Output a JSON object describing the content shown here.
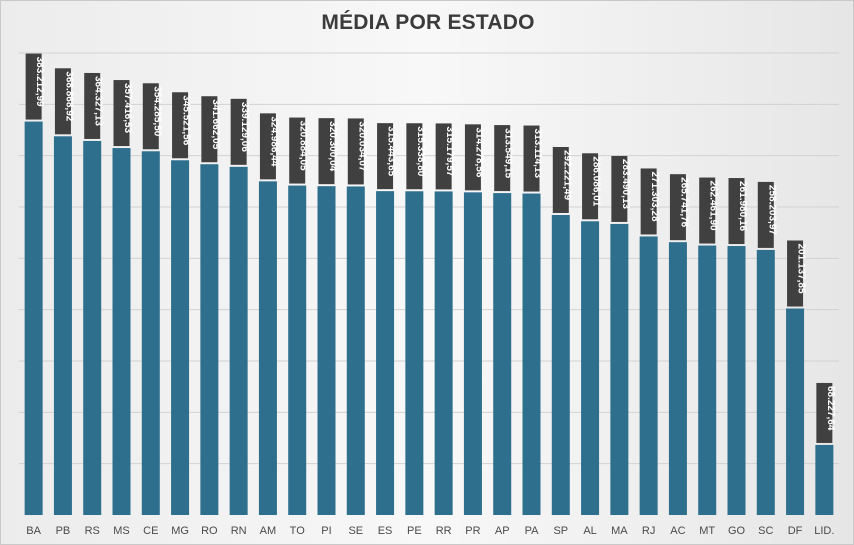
{
  "chart_data": {
    "type": "bar",
    "title": "MÉDIA POR ESTADO",
    "categories": [
      "BA",
      "PB",
      "RS",
      "MS",
      "CE",
      "MG",
      "RO",
      "RN",
      "AM",
      "TO",
      "PI",
      "SE",
      "ES",
      "PE",
      "RR",
      "PR",
      "AP",
      "PA",
      "SP",
      "AL",
      "MA",
      "RJ",
      "AC",
      "MT",
      "GO",
      "SC",
      "DF",
      "LID."
    ],
    "values": [
      383212.99,
      368868.92,
      364327.13,
      357416.53,
      354285.5,
      345521.56,
      341662.05,
      339129.06,
      324986.44,
      320884.05,
      320300.04,
      320034.07,
      315443.65,
      315338.8,
      315179.57,
      314278.56,
      313549.15,
      313114.13,
      292221.49,
      286086.01,
      283490.13,
      271303.28,
      265741.76,
      262461.9,
      261980.16,
      258203.97,
      201137.85,
      68227.64
    ],
    "data_labels": [
      "383.212,99",
      "368.868,92",
      "364.327,13",
      "357.416,53",
      "354.285,50",
      "345.521,56",
      "341.662,05",
      "339.129,06",
      "324.986,44",
      "320.884,05",
      "320.300,04",
      "320.034,07",
      "315.443,65",
      "315.338,80",
      "315.179,57",
      "314.278,56",
      "313.549,15",
      "313.114,13",
      "292.221,49",
      "286.086,01",
      "283.490,13",
      "271.303,28",
      "265.741,76",
      "262.461,90",
      "261.980,16",
      "258.203,97",
      "201.137,85",
      "68.227,64"
    ],
    "ylim": [
      0,
      450000
    ],
    "grid": true,
    "legend": "none",
    "colors": {
      "bar": "#2e6f8e",
      "label_background": "#404040",
      "label_text": "#ffffff",
      "gridline": "#d2d2d2",
      "title": "#3b3b3b"
    }
  }
}
